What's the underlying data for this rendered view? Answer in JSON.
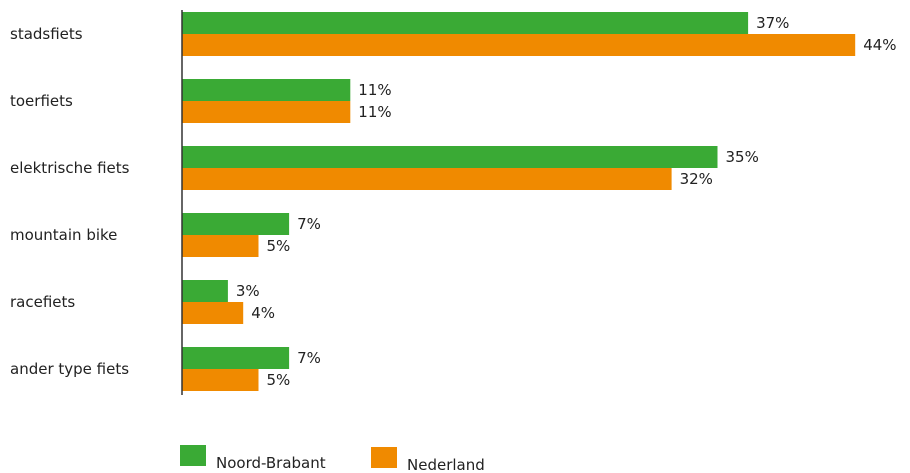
{
  "chart_data": {
    "type": "bar",
    "orientation": "horizontal",
    "categories": [
      "stadsfiets",
      "toerfiets",
      "elektrische fiets",
      "mountain bike",
      "racefiets",
      "ander type fiets"
    ],
    "series": [
      {
        "name": "Noord-Brabant",
        "values": [
          37,
          11,
          35,
          7,
          3,
          7
        ],
        "labels": [
          "37%",
          "11%",
          "35%",
          "7%",
          "3%",
          "7%"
        ],
        "color": "#3aaa35"
      },
      {
        "name": "Nederland",
        "values": [
          44,
          11,
          32,
          5,
          4,
          5
        ],
        "labels": [
          "44%",
          "11%",
          "32%",
          "5%",
          "4%",
          "5%"
        ],
        "color": "#f08a00"
      }
    ],
    "unit": "%",
    "xlim": [
      0,
      45
    ],
    "grid": false,
    "legend_position": "bottom"
  }
}
